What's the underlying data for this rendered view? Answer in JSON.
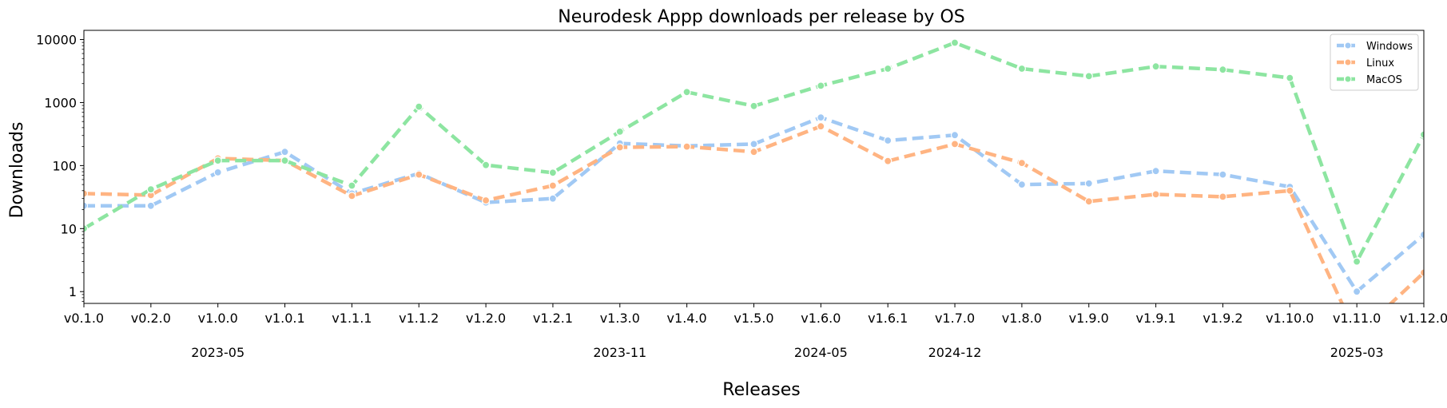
{
  "chart_data": {
    "type": "line",
    "title": "Neurodesk Appp downloads per release by OS",
    "xlabel": "Releases",
    "ylabel": "Downloads",
    "yscale": "log",
    "ylim": [
      0.65,
      14000
    ],
    "yticks": [
      {
        "value": 1,
        "label": "1"
      },
      {
        "value": 10,
        "label": "10"
      },
      {
        "value": 100,
        "label": "100"
      },
      {
        "value": 1000,
        "label": "1000"
      },
      {
        "value": 10000,
        "label": "10000"
      }
    ],
    "categories": [
      "v0.1.0",
      "v0.2.0",
      "v1.0.0",
      "v1.0.1",
      "v1.1.1",
      "v1.1.2",
      "v1.2.0",
      "v1.2.1",
      "v1.3.0",
      "v1.4.0",
      "v1.5.0",
      "v1.6.0",
      "v1.6.1",
      "v1.7.0",
      "v1.8.0",
      "v1.9.0",
      "v1.9.1",
      "v1.9.2",
      "v1.10.0",
      "v1.11.0",
      "v1.12.0"
    ],
    "date_labels": [
      {
        "category": "v1.0.0",
        "label": "2023-05"
      },
      {
        "category": "v1.3.0",
        "label": "2023-11"
      },
      {
        "category": "v1.6.0",
        "label": "2024-05"
      },
      {
        "category": "v1.7.0",
        "label": "2024-12"
      },
      {
        "category": "v1.11.0",
        "label": "2025-03"
      }
    ],
    "legend_position": "top-right",
    "grid": false,
    "series": [
      {
        "name": "Windows",
        "color": "#a1c9f4",
        "values": [
          23,
          23,
          78,
          165,
          36,
          75,
          26,
          30,
          225,
          205,
          220,
          580,
          250,
          305,
          50,
          52,
          82,
          72,
          46,
          1,
          8
        ]
      },
      {
        "name": "Linux",
        "color": "#ffb482",
        "values": [
          36,
          34,
          130,
          120,
          33,
          72,
          28,
          48,
          195,
          200,
          165,
          420,
          118,
          220,
          110,
          27,
          35,
          32,
          40,
          0,
          2
        ]
      },
      {
        "name": "MacOS",
        "color": "#8de5a1",
        "values": [
          10,
          42,
          120,
          120,
          48,
          860,
          102,
          77,
          345,
          1470,
          880,
          1850,
          3450,
          8900,
          3450,
          2620,
          3750,
          3330,
          2460,
          3,
          310
        ]
      }
    ]
  }
}
